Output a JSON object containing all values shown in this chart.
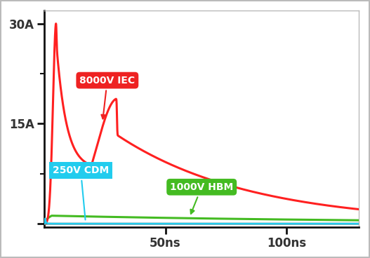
{
  "background_color": "#ffffff",
  "border_color": "#bbbbbb",
  "yticks": [
    0,
    15,
    30
  ],
  "ytick_labels": [
    "",
    "15A",
    "30A"
  ],
  "xticks": [
    50,
    100
  ],
  "xtick_labels": [
    "50ns",
    "100ns"
  ],
  "xlim": [
    0,
    130
  ],
  "ylim": [
    -0.5,
    32
  ],
  "iec_color": "#ff2020",
  "hbm_color": "#44bb22",
  "cdm_color": "#22ccee",
  "baseline_color": "#111111",
  "label_iec_text": "8000V IEC",
  "label_hbm_text": "1000V HBM",
  "label_cdm_text": "250V CDM",
  "label_iec_bg": "#ee2222",
  "label_hbm_bg": "#44bb22",
  "label_cdm_bg": "#22ccee",
  "tick_color": "#333333",
  "axis_color": "#111111",
  "spine_linewidth": 2.0,
  "figsize": [
    5.27,
    3.68
  ],
  "dpi": 100
}
